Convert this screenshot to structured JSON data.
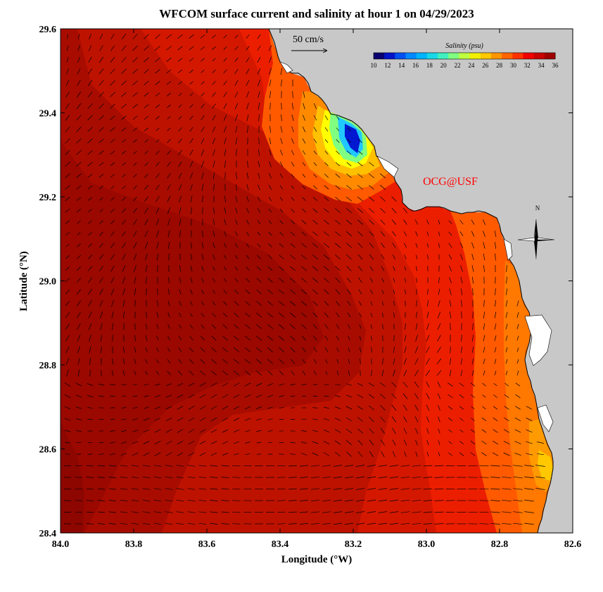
{
  "title": "WFCOM surface current and salinity at hour 1 on 04/29/2023",
  "xaxis": {
    "label": "Longitude (°W)",
    "ticks": [
      "84.0",
      "83.8",
      "83.6",
      "83.4",
      "83.2",
      "83.0",
      "82.8",
      "82.6"
    ]
  },
  "yaxis": {
    "label": "Latitude (°N)",
    "ticks": [
      "28.4",
      "28.6",
      "28.8",
      "29.0",
      "29.2",
      "29.4",
      "29.6"
    ]
  },
  "scale_vector": {
    "label": "50 cm/s",
    "speed_cm_s": 50
  },
  "colorbar": {
    "title": "Salinity (psu)",
    "ticks": [
      "10",
      "12",
      "14",
      "16",
      "18",
      "20",
      "22",
      "24",
      "26",
      "28",
      "30",
      "32",
      "34",
      "36"
    ],
    "colors": [
      "#0a0070",
      "#0014c8",
      "#0050f0",
      "#0088ff",
      "#00b4ff",
      "#18d8e8",
      "#40f0c0",
      "#80ff80",
      "#c0ff40",
      "#f0f000",
      "#ffc800",
      "#ff9600",
      "#ff6400",
      "#ff3200",
      "#f00000",
      "#c80000",
      "#a00000"
    ]
  },
  "credit": "OCG@USF",
  "compass": {
    "label": "N"
  },
  "colors": {
    "land": "#c8c8c8",
    "coast": "#000000",
    "credit": "#ff0000"
  }
}
